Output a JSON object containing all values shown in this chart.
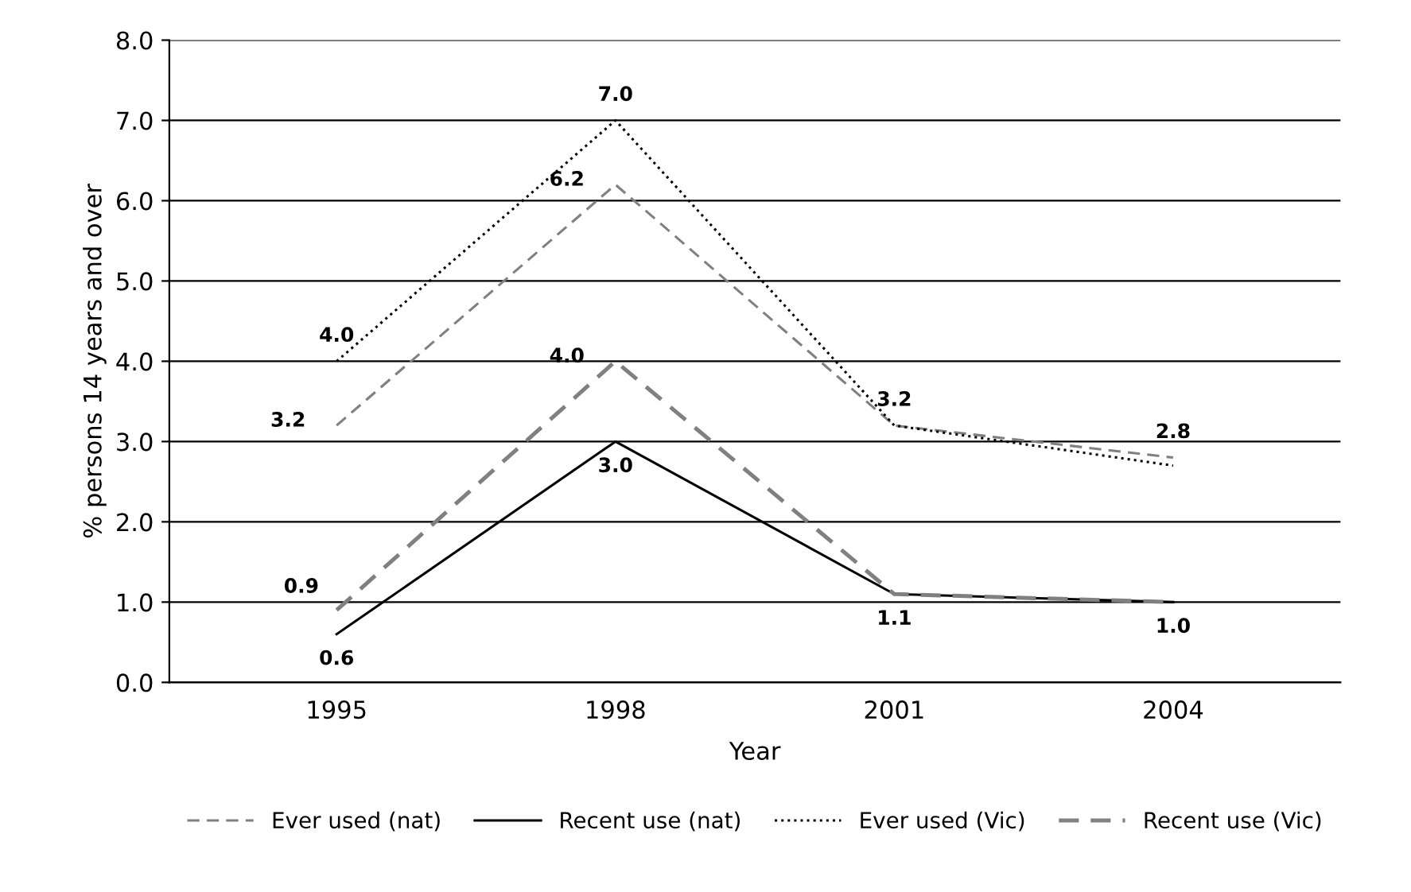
{
  "chart_data": {
    "type": "line",
    "xlabel": "Year",
    "ylabel": "% persons 14 years and over",
    "categories": [
      "1995",
      "1998",
      "2001",
      "2004"
    ],
    "series": [
      {
        "name": "Ever used (nat)",
        "color": "#808080",
        "line_style": "dashed",
        "values": [
          3.2,
          6.2,
          3.2,
          2.8
        ],
        "value_labels": [
          "3.2",
          "6.2",
          "3.2",
          "2.8"
        ]
      },
      {
        "name": "Recent use (nat)",
        "color": "#000000",
        "line_style": "solid",
        "values": [
          0.6,
          3.0,
          1.1,
          1.0
        ],
        "value_labels": [
          "0.6",
          "3.0",
          "1.1",
          "1.0"
        ]
      },
      {
        "name": "Ever used (Vic)",
        "color": "#000000",
        "line_style": "dotted",
        "values": [
          4.0,
          7.0,
          3.2,
          2.7
        ],
        "value_labels": [
          "4.0",
          "7.0",
          null,
          null
        ]
      },
      {
        "name": "Recent use (Vic)",
        "color": "#808080",
        "line_style": "dashed",
        "values": [
          0.9,
          4.0,
          1.1,
          1.0
        ],
        "value_labels": [
          "0.9",
          "4.0",
          null,
          null
        ]
      }
    ],
    "ylim": [
      0,
      8
    ],
    "yticks": [
      {
        "value": 0,
        "label": "0.0"
      },
      {
        "value": 1,
        "label": "1.0"
      },
      {
        "value": 2,
        "label": "2.0"
      },
      {
        "value": 3,
        "label": "3.0"
      },
      {
        "value": 4,
        "label": "4.0"
      },
      {
        "value": 5,
        "label": "5.0"
      },
      {
        "value": 6,
        "label": "6.0"
      },
      {
        "value": 7,
        "label": "7.0"
      },
      {
        "value": 8,
        "label": "8.0"
      }
    ],
    "grid": "y",
    "legend": "bottom",
    "marker": "none"
  }
}
